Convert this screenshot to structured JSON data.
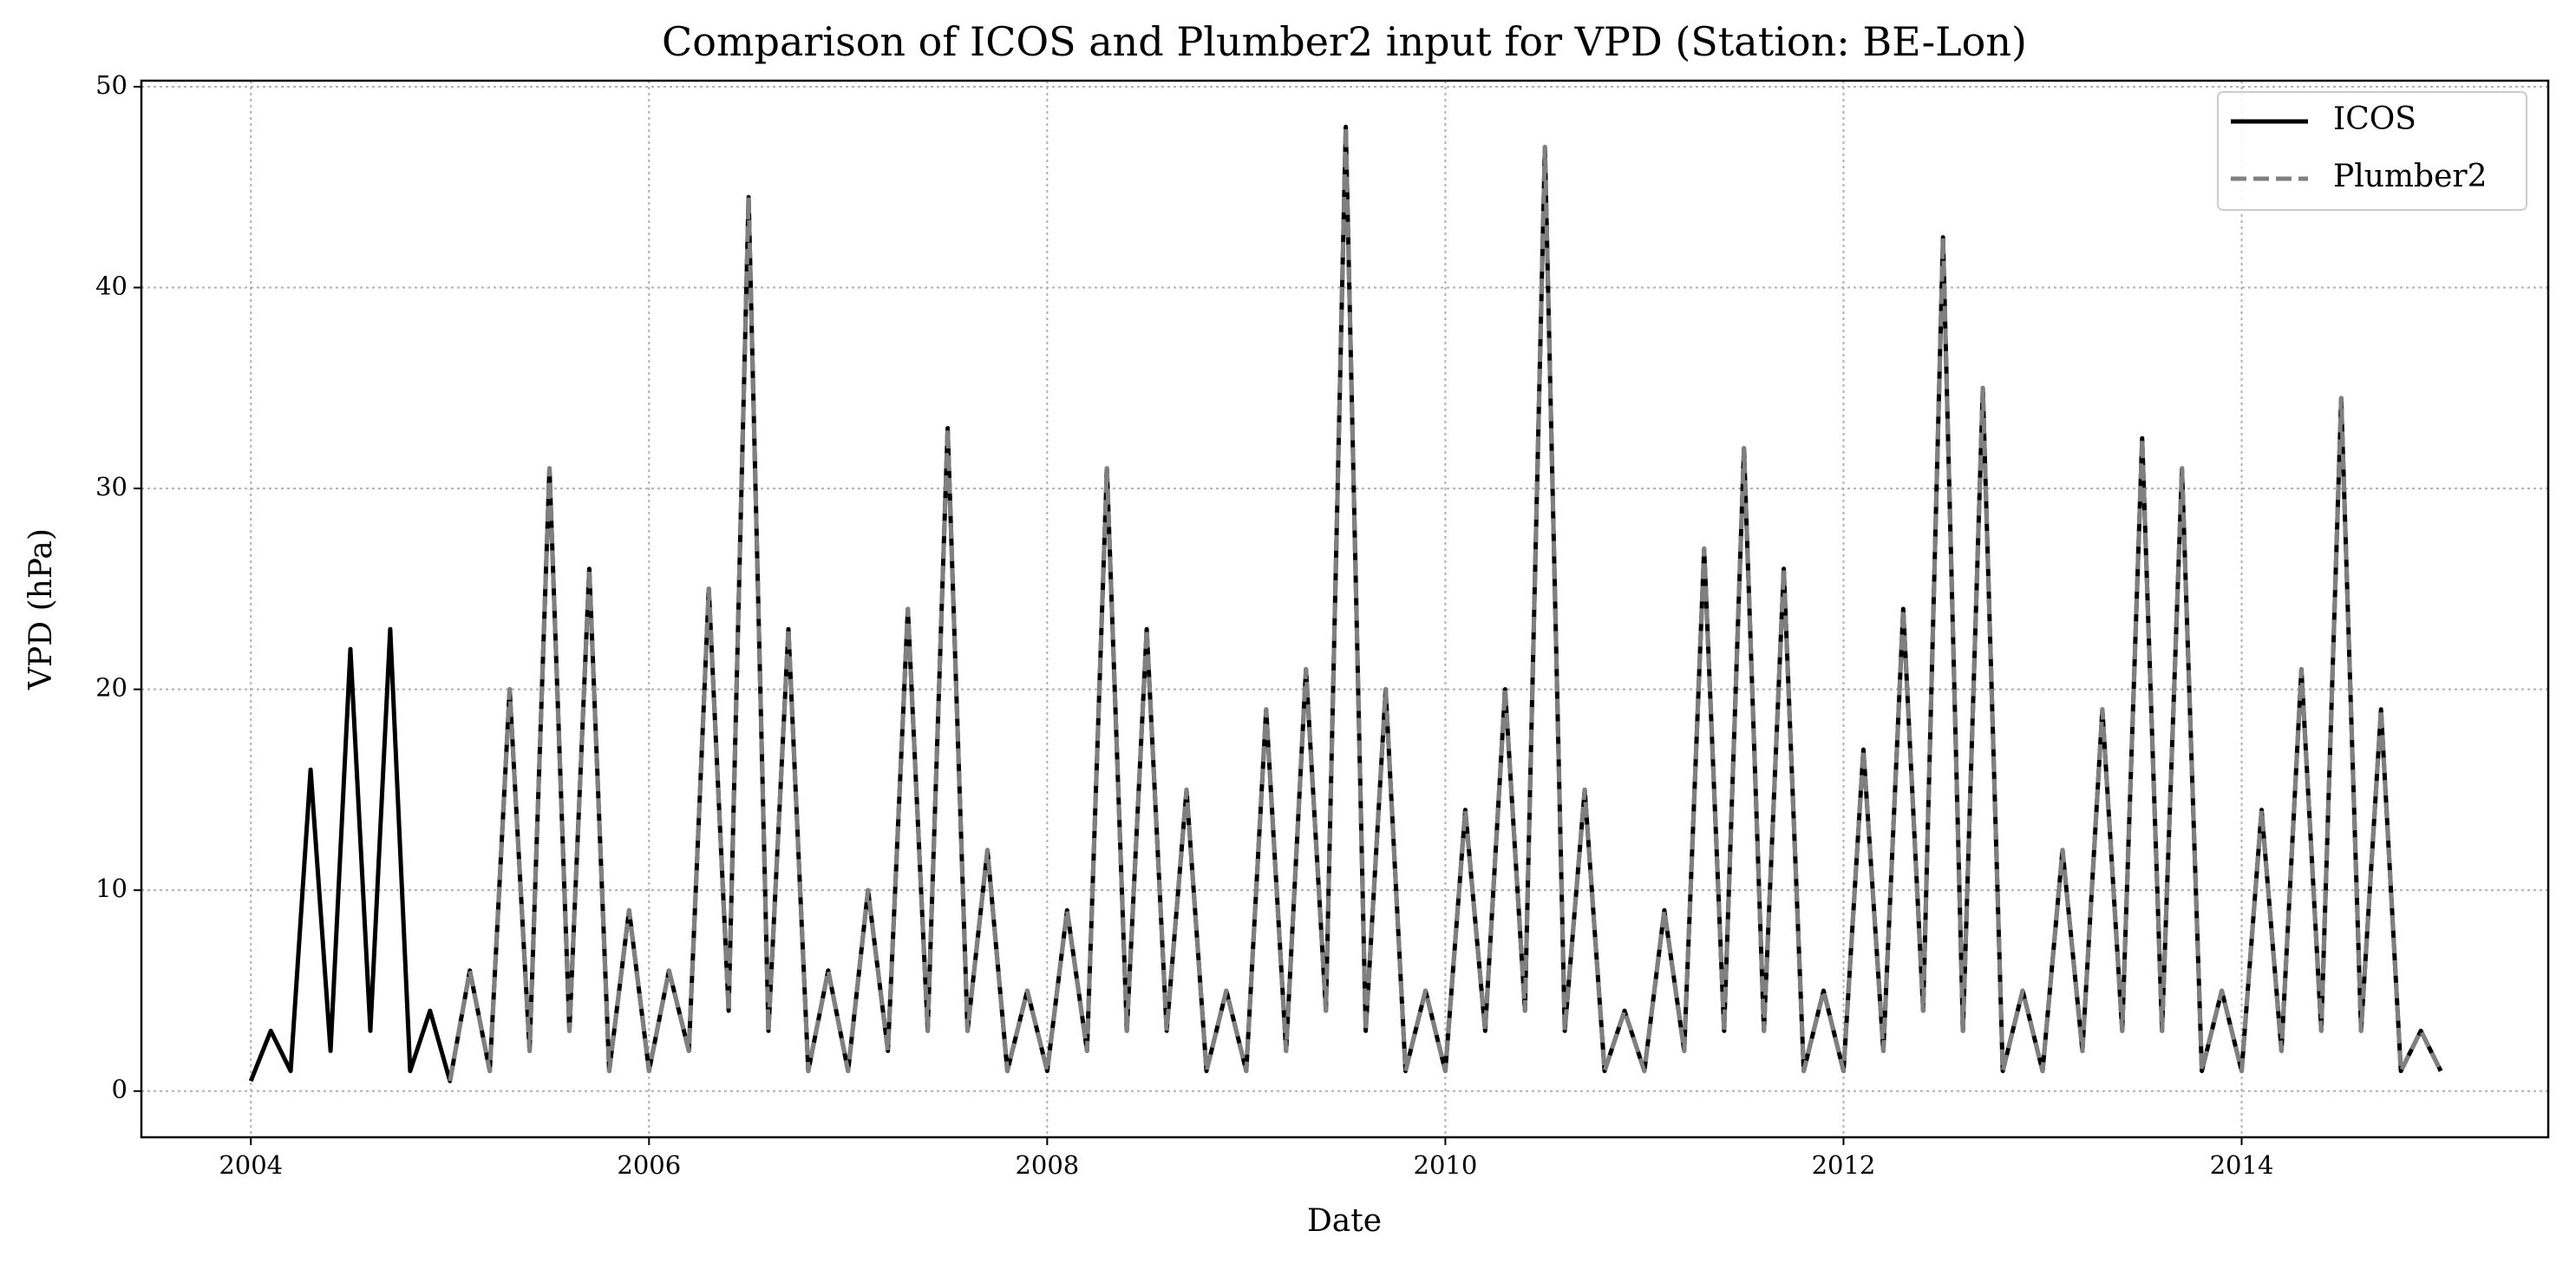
{
  "chart_data": {
    "type": "line",
    "title": "Comparison of ICOS and Plumber2 input for VPD (Station: BE-Lon)",
    "x_label": "Date",
    "y_label": "VPD (hPa)",
    "x": [
      2004,
      2004.1,
      2004.2,
      2004.3,
      2004.4,
      2004.5,
      2004.6,
      2004.7,
      2004.8,
      2004.9,
      2005,
      2005.1,
      2005.2,
      2005.3,
      2005.4,
      2005.5,
      2005.6,
      2005.7,
      2005.8,
      2005.9,
      2006,
      2006.1,
      2006.2,
      2006.3,
      2006.4,
      2006.5,
      2006.6,
      2006.7,
      2006.8,
      2006.9,
      2007,
      2007.1,
      2007.2,
      2007.3,
      2007.4,
      2007.5,
      2007.6,
      2007.7,
      2007.8,
      2007.9,
      2008,
      2008.1,
      2008.2,
      2008.3,
      2008.4,
      2008.5,
      2008.6,
      2008.7,
      2008.8,
      2008.9,
      2009,
      2009.1,
      2009.2,
      2009.3,
      2009.4,
      2009.5,
      2009.6,
      2009.7,
      2009.8,
      2009.9,
      2010,
      2010.1,
      2010.2,
      2010.3,
      2010.4,
      2010.5,
      2010.6,
      2010.7,
      2010.8,
      2010.9,
      2011,
      2011.1,
      2011.2,
      2011.3,
      2011.4,
      2011.5,
      2011.6,
      2011.7,
      2011.8,
      2011.9,
      2012,
      2012.1,
      2012.2,
      2012.3,
      2012.4,
      2012.5,
      2012.6,
      2012.7,
      2012.8,
      2012.9,
      2013,
      2013.1,
      2013.2,
      2013.3,
      2013.4,
      2013.5,
      2013.6,
      2013.7,
      2013.8,
      2013.9,
      2014,
      2014.1,
      2014.2,
      2014.3,
      2014.4,
      2014.5,
      2014.6,
      2014.7,
      2014.8,
      2014.9,
      2015
    ],
    "series": [
      {
        "name": "ICOS",
        "color": "#000000",
        "dash": false,
        "values": [
          0.5,
          3,
          1,
          16,
          2,
          22,
          3,
          23,
          1,
          4,
          0.5,
          6,
          1,
          20,
          2,
          31,
          3,
          26,
          1,
          9,
          1,
          6,
          2,
          25,
          4,
          44.5,
          3,
          23,
          1,
          6,
          1,
          10,
          2,
          24,
          3,
          33,
          3,
          12,
          1,
          5,
          1,
          9,
          2,
          31,
          3,
          23,
          3,
          15,
          1,
          5,
          1,
          19,
          2,
          21,
          4,
          48,
          3,
          20,
          1,
          5,
          1,
          14,
          3,
          20,
          4,
          47,
          3,
          15,
          1,
          4,
          1,
          9,
          2,
          27,
          3,
          32,
          3,
          26,
          1,
          5,
          1,
          17,
          2,
          24,
          4,
          42.5,
          3,
          35,
          1,
          5,
          1,
          12,
          2,
          19,
          3,
          32.5,
          3,
          31,
          1,
          5,
          1,
          14,
          2,
          21,
          3,
          34.5,
          3,
          19,
          1,
          3,
          1
        ]
      },
      {
        "name": "Plumber2",
        "color": "#808080",
        "dash": true,
        "values": [
          null,
          null,
          null,
          null,
          null,
          null,
          null,
          null,
          null,
          null,
          0.5,
          6,
          1,
          20,
          2,
          31,
          3,
          26,
          1,
          9,
          1,
          6,
          2,
          25,
          4,
          44.5,
          3,
          23,
          1,
          6,
          1,
          10,
          2,
          24,
          3,
          33,
          3,
          12,
          1,
          5,
          1,
          9,
          2,
          31,
          3,
          23,
          3,
          15,
          1,
          5,
          1,
          19,
          2,
          21,
          4,
          48,
          3,
          20,
          1,
          5,
          1,
          14,
          3,
          20,
          4,
          47,
          3,
          15,
          1,
          4,
          1,
          9,
          2,
          27,
          3,
          32,
          3,
          26,
          1,
          5,
          1,
          17,
          2,
          24,
          4,
          42.5,
          3,
          35,
          1,
          5,
          1,
          12,
          2,
          19,
          3,
          32.5,
          3,
          31,
          1,
          5,
          1,
          14,
          2,
          21,
          3,
          34.5,
          3,
          19,
          1,
          3,
          1
        ]
      }
    ],
    "xlim": [
      2003.45,
      2015.54
    ],
    "xticks": [
      2004,
      2006,
      2008,
      2010,
      2012,
      2014
    ],
    "ylim": [
      -2.3,
      50.3
    ],
    "yticks": [
      0,
      10,
      20,
      30,
      40,
      50
    ],
    "grid": true,
    "legend": "upper right"
  }
}
